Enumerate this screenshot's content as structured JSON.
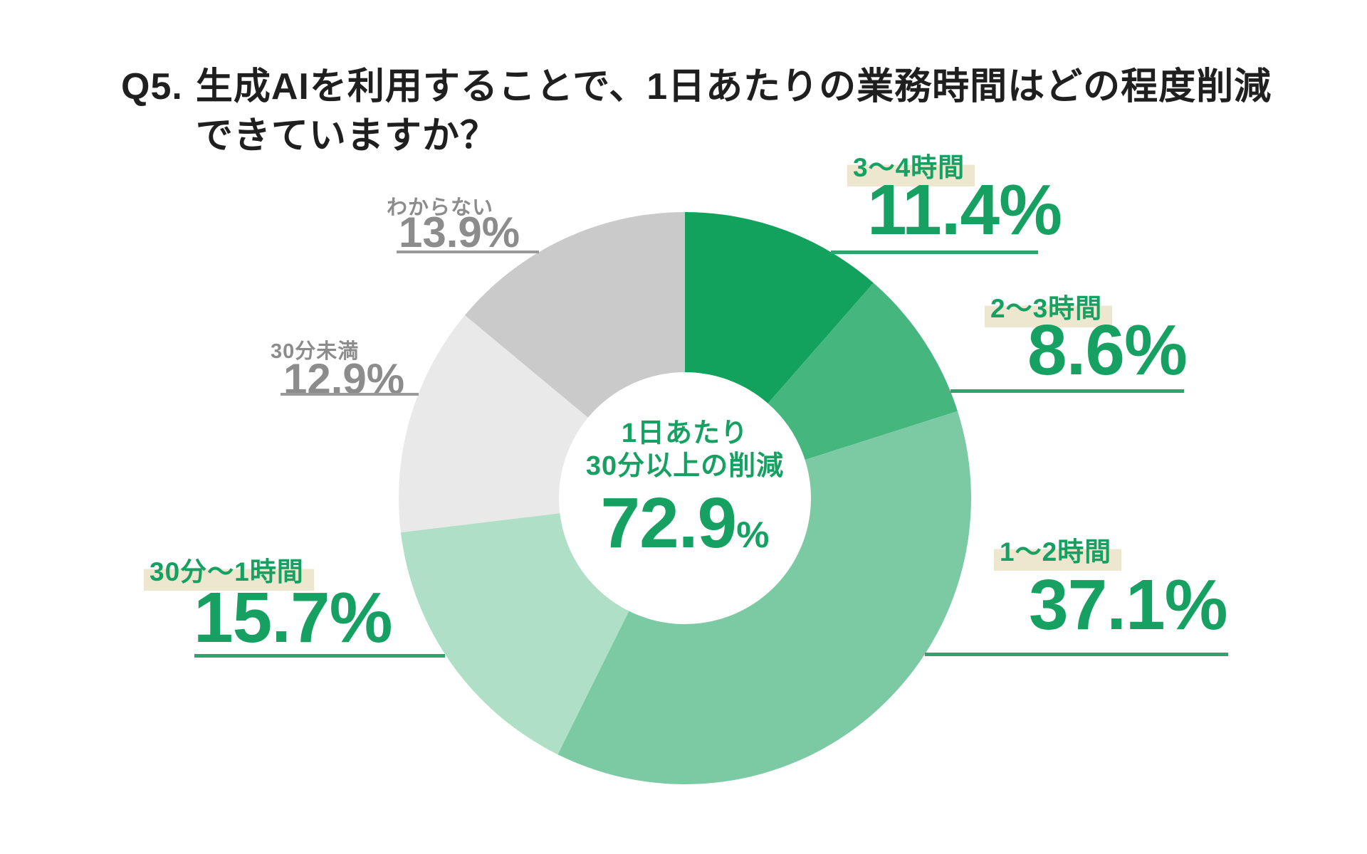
{
  "title": {
    "prefix": "Q5.",
    "line1": "生成AIを利用することで、1日あたりの業務時間はどの程度削減",
    "line2": "できていますか？"
  },
  "donut_center": {
    "line1": "1日あたり",
    "line2": "30分以上の削減",
    "value": "72.9",
    "unit": "%"
  },
  "chart_data": {
    "type": "pie",
    "variant": "donut",
    "title": "Q5. 生成AIを利用することで、1日あたりの業務時間はどの程度削減できていますか？",
    "start_angle": "12-oclock",
    "direction": "clockwise",
    "inner_radius_ratio": 0.44,
    "legend_position": "callout-labels",
    "center_label": {
      "text": "1日あたり30分以上の削減",
      "value_pct": 72.9
    },
    "slices": [
      {
        "label": "3〜4時間",
        "value_pct": 11.4,
        "display": "11.4%",
        "color": "#12a25e",
        "label_style": "green-highlight"
      },
      {
        "label": "2〜3時間",
        "value_pct": 8.6,
        "display": "8.6%",
        "color": "#45b77e",
        "label_style": "green-highlight"
      },
      {
        "label": "1〜2時間",
        "value_pct": 37.1,
        "display": "37.1%",
        "color": "#7ccaa4",
        "label_style": "green-highlight"
      },
      {
        "label": "30分〜1時間",
        "value_pct": 15.7,
        "display": "15.7%",
        "color": "#b0dfc8",
        "label_style": "green-highlight"
      },
      {
        "label": "30分未満",
        "value_pct": 12.9,
        "display": "12.9%",
        "color": "#e9e9e9",
        "label_style": "gray-plain"
      },
      {
        "label": "わからない",
        "value_pct": 13.9,
        "display": "13.9%",
        "color": "#cacaca",
        "label_style": "gray-plain"
      }
    ],
    "colors": {
      "accent_green_text": "#16a162",
      "leader_green": "#2ea46e",
      "gray_text": "#8c8c8c",
      "leader_gray": "#9a9a9a",
      "highlight_beige": "#ede7d0",
      "title_black": "#1f1f1f",
      "background": "#ffffff"
    }
  }
}
